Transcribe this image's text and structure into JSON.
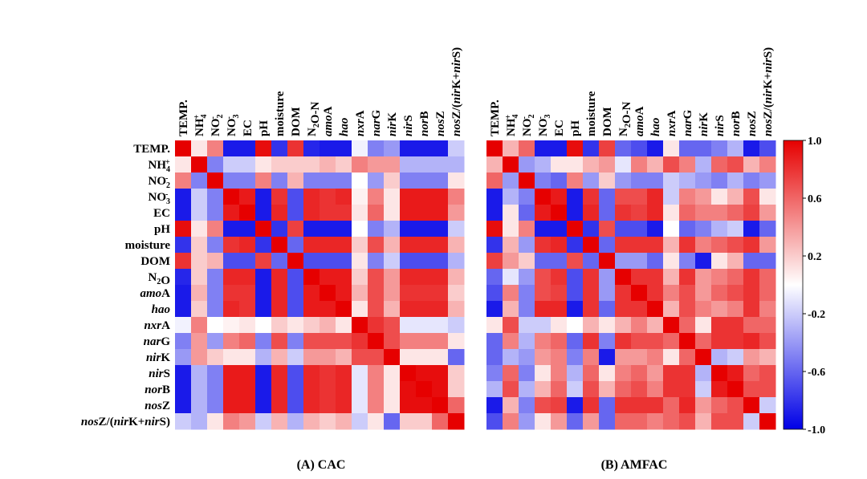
{
  "chart_data": {
    "type": "heatmap",
    "variables": [
      {
        "id": "TEMP",
        "parts": [
          {
            "t": "TEMP."
          }
        ]
      },
      {
        "id": "NH4",
        "parts": [
          {
            "t": "NH"
          },
          {
            "t": "4",
            "s": "sub"
          },
          {
            "t": "+",
            "s": "sup"
          }
        ]
      },
      {
        "id": "NO2",
        "parts": [
          {
            "t": "NO"
          },
          {
            "t": "2",
            "s": "sub"
          },
          {
            "t": "-",
            "s": "sup"
          }
        ]
      },
      {
        "id": "NO3",
        "parts": [
          {
            "t": "NO"
          },
          {
            "t": "3",
            "s": "sub"
          },
          {
            "t": "-",
            "s": "sup"
          }
        ]
      },
      {
        "id": "EC",
        "parts": [
          {
            "t": "EC"
          }
        ]
      },
      {
        "id": "pH",
        "parts": [
          {
            "t": "pH"
          }
        ]
      },
      {
        "id": "moisture",
        "parts": [
          {
            "t": "moisture"
          }
        ]
      },
      {
        "id": "DOM",
        "parts": [
          {
            "t": "DOM"
          }
        ]
      },
      {
        "id": "N2O",
        "parts": [
          {
            "t": "N"
          },
          {
            "t": "2",
            "s": "sub"
          },
          {
            "t": "O"
          }
        ],
        "col_parts": [
          {
            "t": "N"
          },
          {
            "t": "2",
            "s": "sub"
          },
          {
            "t": "O-N"
          }
        ]
      },
      {
        "id": "amoA",
        "parts": [
          {
            "t": "amo",
            "s": "i"
          },
          {
            "t": "A"
          }
        ]
      },
      {
        "id": "hao",
        "parts": [
          {
            "t": "hao",
            "s": "i"
          }
        ]
      },
      {
        "id": "nxrA",
        "parts": [
          {
            "t": "nxr",
            "s": "i"
          },
          {
            "t": "A"
          }
        ]
      },
      {
        "id": "narG",
        "parts": [
          {
            "t": "nar",
            "s": "i"
          },
          {
            "t": "G"
          }
        ]
      },
      {
        "id": "nirK",
        "parts": [
          {
            "t": "nir",
            "s": "i"
          },
          {
            "t": "K"
          }
        ]
      },
      {
        "id": "nirS",
        "parts": [
          {
            "t": "nir",
            "s": "i"
          },
          {
            "t": "S"
          }
        ]
      },
      {
        "id": "norB",
        "parts": [
          {
            "t": "nor",
            "s": "i"
          },
          {
            "t": "B"
          }
        ]
      },
      {
        "id": "nosZ",
        "parts": [
          {
            "t": "nos",
            "s": "i"
          },
          {
            "t": "Z"
          }
        ]
      },
      {
        "id": "nosZ_ratio",
        "parts": [
          {
            "t": "nos",
            "s": "i"
          },
          {
            "t": "Z/("
          },
          {
            "t": "nir",
            "s": "i"
          },
          {
            "t": "K+"
          },
          {
            "t": "nir",
            "s": "i"
          },
          {
            "t": "S)"
          }
        ]
      }
    ],
    "panels": [
      {
        "caption": "(A) CAC",
        "matrix": [
          [
            1.0,
            0.1,
            0.5,
            -0.9,
            -0.9,
            0.95,
            -0.8,
            0.8,
            -0.85,
            -0.9,
            -0.9,
            -0.05,
            -0.5,
            -0.4,
            -0.9,
            -0.9,
            -0.9,
            -0.2
          ],
          [
            0.1,
            1.0,
            -0.5,
            -0.2,
            -0.2,
            0.1,
            0.2,
            0.2,
            0.2,
            0.3,
            0.2,
            0.5,
            0.4,
            0.4,
            -0.3,
            -0.3,
            -0.3,
            -0.3
          ],
          [
            0.5,
            -0.5,
            1.0,
            -0.5,
            -0.5,
            0.5,
            -0.5,
            0.3,
            -0.5,
            -0.5,
            -0.5,
            0.0,
            -0.4,
            0.2,
            -0.5,
            -0.5,
            -0.5,
            0.1
          ],
          [
            -0.9,
            -0.2,
            -0.5,
            1.0,
            0.9,
            -0.9,
            0.8,
            -0.7,
            0.85,
            0.8,
            0.85,
            0.05,
            0.5,
            0.1,
            0.9,
            0.9,
            0.9,
            0.5
          ],
          [
            -0.9,
            -0.2,
            -0.5,
            0.9,
            1.0,
            -0.9,
            0.85,
            -0.7,
            0.85,
            0.8,
            0.8,
            0.1,
            0.6,
            0.1,
            0.9,
            0.9,
            0.9,
            0.4
          ],
          [
            0.95,
            0.1,
            0.5,
            -0.9,
            -0.9,
            1.0,
            -0.8,
            0.75,
            -0.9,
            -0.9,
            -0.9,
            0.0,
            -0.5,
            -0.3,
            -0.9,
            -0.9,
            -0.9,
            -0.2
          ],
          [
            -0.8,
            0.2,
            -0.5,
            0.8,
            0.85,
            -0.8,
            1.0,
            -0.6,
            0.85,
            0.85,
            0.85,
            0.2,
            0.7,
            0.3,
            0.85,
            0.85,
            0.85,
            0.3
          ],
          [
            0.8,
            0.2,
            0.3,
            -0.7,
            -0.7,
            0.75,
            -0.6,
            1.0,
            -0.7,
            -0.7,
            -0.7,
            0.1,
            -0.5,
            -0.2,
            -0.7,
            -0.7,
            -0.7,
            -0.3
          ],
          [
            -0.85,
            0.2,
            -0.5,
            0.85,
            0.85,
            -0.9,
            0.85,
            -0.7,
            1.0,
            0.9,
            0.9,
            0.2,
            0.7,
            0.4,
            0.85,
            0.85,
            0.85,
            0.3
          ],
          [
            -0.9,
            0.3,
            -0.5,
            0.8,
            0.8,
            -0.9,
            0.85,
            -0.7,
            0.9,
            1.0,
            0.9,
            0.3,
            0.7,
            0.4,
            0.8,
            0.8,
            0.8,
            0.2
          ],
          [
            -0.9,
            0.2,
            -0.5,
            0.85,
            0.8,
            -0.9,
            0.85,
            -0.7,
            0.9,
            0.9,
            1.0,
            0.1,
            0.7,
            0.3,
            0.85,
            0.85,
            0.85,
            0.3
          ],
          [
            -0.05,
            0.5,
            0.0,
            0.05,
            0.1,
            0.0,
            0.2,
            0.1,
            0.2,
            0.3,
            0.1,
            1.0,
            0.8,
            0.7,
            -0.1,
            -0.1,
            -0.1,
            -0.2
          ],
          [
            -0.5,
            0.4,
            -0.4,
            0.5,
            0.6,
            -0.5,
            0.7,
            -0.5,
            0.7,
            0.7,
            0.7,
            0.8,
            1.0,
            0.7,
            0.5,
            0.5,
            0.5,
            0.1
          ],
          [
            -0.4,
            0.4,
            0.2,
            0.1,
            0.1,
            -0.3,
            0.3,
            -0.2,
            0.4,
            0.4,
            0.3,
            0.7,
            0.7,
            1.0,
            0.1,
            0.1,
            0.1,
            -0.6
          ],
          [
            -0.9,
            -0.3,
            -0.5,
            0.9,
            0.9,
            -0.9,
            0.85,
            -0.7,
            0.85,
            0.8,
            0.85,
            -0.1,
            0.5,
            0.1,
            1.0,
            0.95,
            0.95,
            0.2
          ],
          [
            -0.9,
            -0.3,
            -0.5,
            0.9,
            0.9,
            -0.9,
            0.85,
            -0.7,
            0.85,
            0.8,
            0.85,
            -0.1,
            0.5,
            0.1,
            0.95,
            1.0,
            0.95,
            0.2
          ],
          [
            -0.9,
            -0.3,
            -0.5,
            0.9,
            0.9,
            -0.9,
            0.85,
            -0.7,
            0.85,
            0.8,
            0.85,
            -0.1,
            0.5,
            0.1,
            0.95,
            0.95,
            1.0,
            0.6
          ],
          [
            -0.2,
            -0.3,
            0.1,
            0.5,
            0.4,
            -0.2,
            0.3,
            -0.3,
            0.3,
            0.2,
            0.3,
            -0.2,
            0.1,
            -0.6,
            0.2,
            0.2,
            0.6,
            1.0
          ]
        ]
      },
      {
        "caption": "(B) AMFAC",
        "matrix": [
          [
            1.0,
            0.3,
            0.6,
            -0.9,
            -0.9,
            0.95,
            -0.8,
            0.75,
            -0.6,
            -0.7,
            -0.9,
            0.1,
            -0.6,
            -0.6,
            -0.5,
            -0.3,
            -0.9,
            -0.7
          ],
          [
            0.3,
            1.0,
            -0.4,
            -0.3,
            0.1,
            0.1,
            0.3,
            0.4,
            -0.1,
            0.5,
            0.3,
            0.7,
            0.5,
            -0.3,
            0.6,
            0.7,
            0.3,
            0.5
          ],
          [
            0.6,
            -0.4,
            1.0,
            -0.5,
            -0.6,
            0.5,
            -0.4,
            0.2,
            -0.4,
            -0.5,
            -0.5,
            -0.2,
            -0.3,
            -0.4,
            -0.5,
            -0.3,
            -0.5,
            -0.4
          ],
          [
            -0.9,
            -0.3,
            -0.5,
            1.0,
            0.9,
            -0.9,
            0.8,
            -0.6,
            0.7,
            0.7,
            0.85,
            -0.2,
            0.5,
            0.4,
            0.1,
            0.3,
            0.7,
            0.1
          ],
          [
            -0.9,
            0.1,
            -0.6,
            0.9,
            1.0,
            -0.9,
            0.85,
            -0.6,
            0.8,
            0.75,
            0.85,
            0.1,
            0.6,
            0.5,
            0.5,
            0.6,
            0.75,
            0.4
          ],
          [
            0.95,
            0.1,
            0.5,
            -0.9,
            -0.9,
            1.0,
            -0.8,
            0.7,
            -0.7,
            -0.7,
            -0.9,
            0.0,
            -0.6,
            -0.5,
            -0.3,
            -0.2,
            -0.9,
            -0.6
          ],
          [
            -0.8,
            0.3,
            -0.4,
            0.8,
            0.85,
            -0.8,
            1.0,
            -0.6,
            0.8,
            0.8,
            0.8,
            0.3,
            0.8,
            0.5,
            0.6,
            0.7,
            0.8,
            0.4
          ],
          [
            0.75,
            0.4,
            0.2,
            -0.6,
            -0.6,
            0.7,
            -0.6,
            1.0,
            -0.4,
            -0.4,
            -0.6,
            0.1,
            -0.5,
            -0.9,
            0.1,
            0.3,
            -0.6,
            -0.6
          ],
          [
            -0.6,
            -0.1,
            -0.4,
            0.7,
            0.8,
            -0.7,
            0.8,
            -0.4,
            1.0,
            0.8,
            0.8,
            0.3,
            0.8,
            0.4,
            0.5,
            0.6,
            0.8,
            0.6
          ],
          [
            -0.7,
            0.5,
            -0.5,
            0.7,
            0.75,
            -0.7,
            0.8,
            -0.4,
            0.8,
            1.0,
            0.8,
            0.5,
            0.7,
            0.4,
            0.6,
            0.7,
            0.8,
            0.6
          ],
          [
            -0.9,
            0.3,
            -0.5,
            0.85,
            0.85,
            -0.9,
            0.8,
            -0.6,
            0.8,
            0.8,
            1.0,
            0.3,
            0.7,
            0.5,
            0.4,
            0.5,
            0.8,
            0.5
          ],
          [
            0.1,
            0.7,
            -0.2,
            -0.2,
            0.1,
            0.0,
            0.3,
            0.1,
            0.3,
            0.5,
            0.3,
            1.0,
            0.6,
            0.1,
            0.8,
            0.8,
            0.6,
            0.6
          ],
          [
            -0.6,
            0.5,
            -0.3,
            0.5,
            0.6,
            -0.6,
            0.8,
            -0.5,
            0.8,
            0.7,
            0.7,
            0.6,
            1.0,
            0.6,
            0.8,
            0.8,
            0.85,
            0.7
          ],
          [
            -0.6,
            -0.3,
            -0.4,
            0.4,
            0.5,
            -0.5,
            0.5,
            -0.9,
            0.4,
            0.4,
            0.5,
            0.1,
            0.6,
            1.0,
            -0.3,
            -0.2,
            0.4,
            0.3
          ],
          [
            -0.5,
            0.6,
            -0.5,
            0.1,
            0.5,
            -0.3,
            0.6,
            0.1,
            0.5,
            0.6,
            0.4,
            0.8,
            0.8,
            -0.3,
            1.0,
            0.9,
            0.6,
            0.7
          ],
          [
            -0.3,
            0.7,
            -0.3,
            0.3,
            0.6,
            -0.2,
            0.7,
            0.3,
            0.6,
            0.7,
            0.5,
            0.8,
            0.8,
            -0.2,
            0.9,
            1.0,
            0.7,
            0.7
          ],
          [
            -0.9,
            0.3,
            -0.5,
            0.7,
            0.75,
            -0.9,
            0.8,
            -0.6,
            0.8,
            0.8,
            0.8,
            0.6,
            0.85,
            0.4,
            0.6,
            0.7,
            1.0,
            -0.2
          ],
          [
            -0.7,
            0.5,
            -0.4,
            0.1,
            0.4,
            -0.6,
            0.4,
            -0.6,
            0.6,
            0.6,
            0.5,
            0.6,
            0.7,
            0.3,
            0.7,
            0.7,
            -0.2,
            1.0
          ]
        ]
      }
    ],
    "colorbar": {
      "range": [
        -1.0,
        1.0
      ],
      "ticks": [
        "1.0",
        "0.6",
        "0.2",
        "-0.2",
        "-0.6",
        "-1.0"
      ],
      "colors": {
        "negative": "#0000e6",
        "zero": "#ffffff",
        "positive": "#e60000"
      }
    }
  }
}
